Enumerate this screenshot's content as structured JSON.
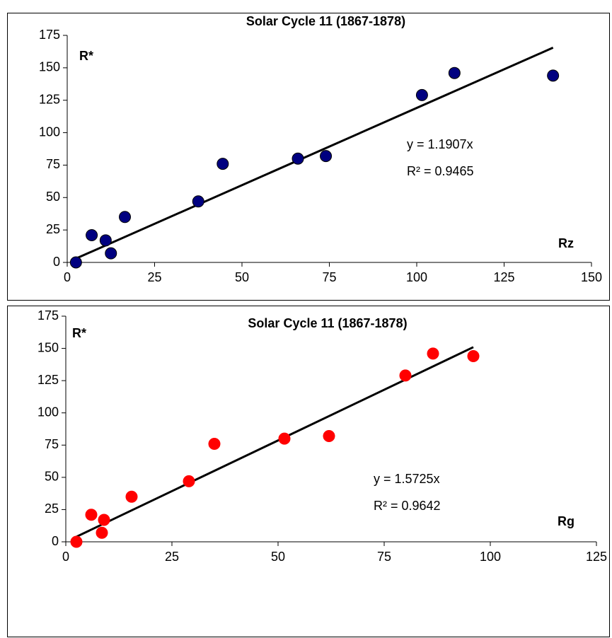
{
  "chart_data": [
    {
      "type": "scatter",
      "title": "Solar Cycle 11 (1867-1878)",
      "x_label": "Rz",
      "y_label": "R*",
      "x": [
        2.5,
        7,
        11,
        12.5,
        16.5,
        37.5,
        44.5,
        66,
        74,
        101.5,
        110.8,
        139
      ],
      "values": [
        0,
        21,
        17,
        7,
        35,
        47,
        76,
        80,
        82,
        129,
        146,
        144
      ],
      "color": "#000080",
      "edge_color": "#000000",
      "xlim": [
        0,
        150
      ],
      "ylim": [
        0,
        175
      ],
      "xticks": [
        0,
        25,
        50,
        75,
        100,
        125,
        150
      ],
      "yticks": [
        0,
        25,
        50,
        75,
        100,
        125,
        150,
        175
      ],
      "grid": false,
      "trendline": {
        "slope": 1.1907,
        "equation": "y = 1.1907x",
        "r_squared": "R² = 0.9465"
      }
    },
    {
      "type": "scatter",
      "title": "Solar Cycle 11 (1867-1878)",
      "x_label": "Rg",
      "y_label": "R*",
      "x": [
        2.5,
        6,
        9,
        8.5,
        15.5,
        29,
        35,
        51.5,
        62,
        80,
        86.5,
        96
      ],
      "values": [
        0,
        21,
        17,
        7,
        35,
        47,
        76,
        80,
        82,
        129,
        146,
        144
      ],
      "color": "#ff0000",
      "edge_color": "#ff0000",
      "xlim": [
        0,
        125
      ],
      "ylim": [
        0,
        175
      ],
      "xticks": [
        0,
        25,
        50,
        75,
        100,
        125
      ],
      "yticks": [
        0,
        25,
        50,
        75,
        100,
        125,
        150,
        175
      ],
      "grid": false,
      "trendline": {
        "slope": 1.5725,
        "equation": "y = 1.5725x",
        "r_squared": "R² = 0.9642"
      }
    }
  ]
}
